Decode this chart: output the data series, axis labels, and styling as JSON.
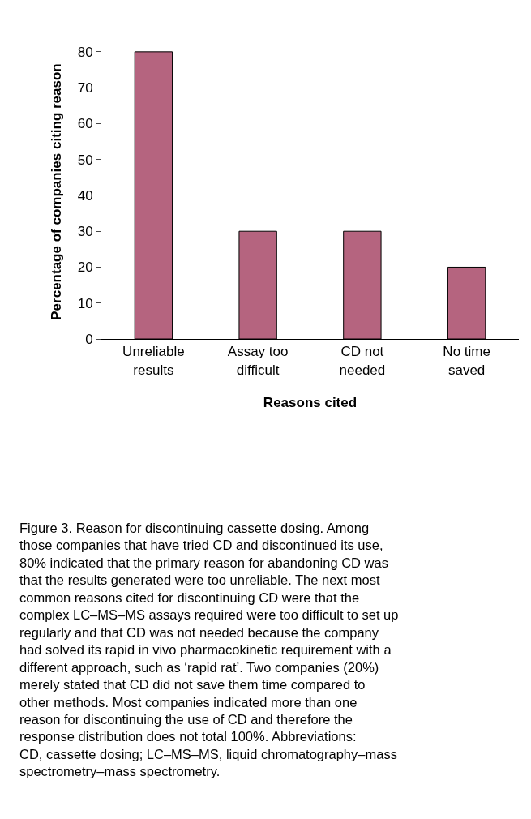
{
  "chart_data": {
    "type": "bar",
    "xlabel": "Reasons cited",
    "ylabel": "Percentage of companies citing reason",
    "categories": [
      "Unreliable\nresults",
      "Assay too\ndifficult",
      "CD not\nneeded",
      "No time\nsaved"
    ],
    "values": [
      80,
      30,
      30,
      20
    ],
    "color": "#b5647f",
    "ylim": [
      0,
      82
    ],
    "yticks": [
      0,
      10,
      20,
      30,
      40,
      50,
      60,
      70,
      80
    ],
    "legend": false,
    "annotations": [
      "Figure 3. Reason for discontinuing cassette dosing. Among\nthose companies that have tried CD and discontinued its use,\n80% indicated that the primary reason for abandoning CD was\nthat the results generated were too unreliable. The next most\ncommon reasons cited for discontinuing CD were that the\ncomplex LC–MS–MS assays required were too difficult to set up\nregularly and that CD was not needed because the company\nhad solved its rapid in vivo pharmacokinetic requirement with a\ndifferent approach, such as ‘rapid rat’. Two companies (20%)\nmerely stated that CD did not save them time compared to\nother methods. Most companies indicated more than one\nreason for discontinuing the use of CD and therefore the\nresponse distribution does not total 100%. Abbreviations:\nCD, cassette dosing; LC–MS–MS, liquid chromatography–mass\nspectrometry–mass spectrometry."
    ]
  }
}
